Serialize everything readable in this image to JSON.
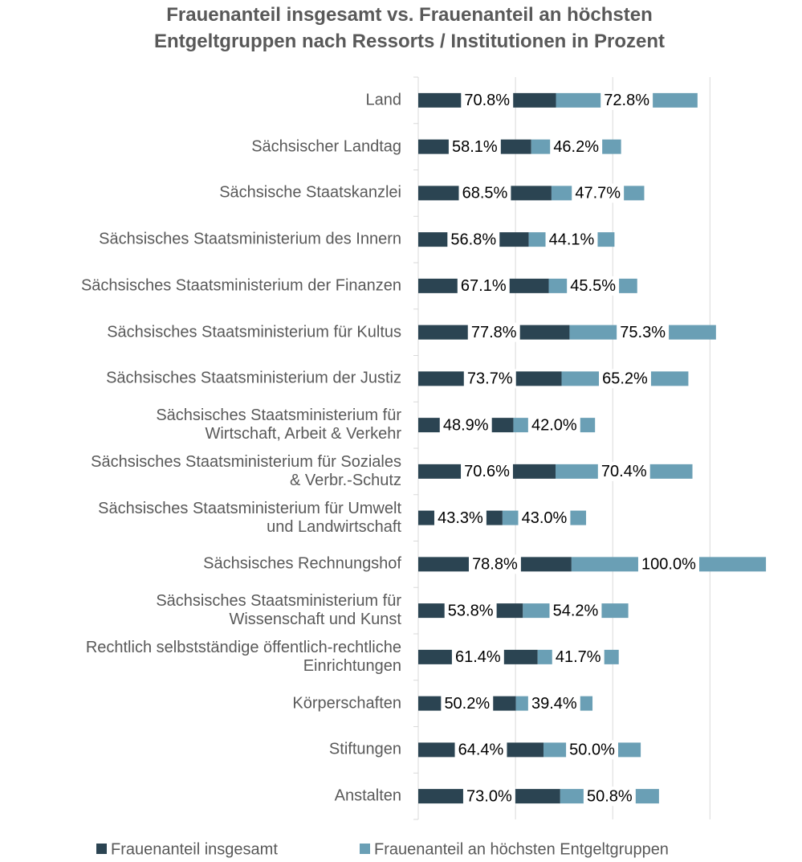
{
  "chart_data": {
    "type": "bar",
    "orientation": "horizontal",
    "stacked": true,
    "title": "Frauenanteil insgesamt vs. Frauenanteil an höchsten\nEntgeltgruppen nach Ressorts / Institutionen in Prozent",
    "categories": [
      "Land",
      "Sächsischer Landtag",
      "Sächsische Staatskanzlei",
      "Sächsisches Staatsministerium des Innern",
      "Sächsisches Staatsministerium der Finanzen",
      "Sächsisches Staatsministerium für Kultus",
      "Sächsisches Staatsministerium der Justiz",
      "Sächsisches Staatsministerium für\nWirtschaft, Arbeit & Verkehr",
      "Sächsisches Staatsministerium für Soziales\n& Verbr.-Schutz",
      "Sächsisches Staatsministerium für Umwelt\nund Landwirtschaft",
      "Sächsisches Rechnungshof",
      "Sächsisches Staatsministerium für\nWissenschaft und Kunst",
      "Rechtlich selbstständige öffentlich-rechtliche\nEinrichtungen",
      "Körperschaften",
      "Stiftungen",
      "Anstalten"
    ],
    "series": [
      {
        "name": "Frauenanteil insgesamt",
        "color": "#2b4452",
        "values": [
          70.8,
          58.1,
          68.5,
          56.8,
          67.1,
          77.8,
          73.7,
          48.9,
          70.6,
          43.3,
          78.8,
          53.8,
          61.4,
          50.2,
          64.4,
          73.0
        ],
        "value_labels": [
          "70.8%",
          "58.1%",
          "68.5%",
          "56.8%",
          "67.1%",
          "77.8%",
          "73.7%",
          "48.9%",
          "70.6%",
          "43.3%",
          "78.8%",
          "53.8%",
          "61.4%",
          "50.2%",
          "64.4%",
          "73.0%"
        ]
      },
      {
        "name": "Frauenanteil an höchsten Entgeltgruppen",
        "color": "#6a9fb5",
        "values": [
          72.8,
          46.2,
          47.7,
          44.1,
          45.5,
          75.3,
          65.2,
          42.0,
          70.4,
          43.0,
          100.0,
          54.2,
          41.7,
          39.4,
          50.0,
          50.8
        ],
        "value_labels": [
          "72.8%",
          "46.2%",
          "47.7%",
          "44.1%",
          "45.5%",
          "75.3%",
          "65.2%",
          "42.0%",
          "70.4%",
          "43.0%",
          "100.0%",
          "54.2%",
          "41.7%",
          "39.4%",
          "50.0%",
          "50.8%"
        ]
      }
    ],
    "xlim": [
      0,
      180
    ],
    "xticks": [
      0,
      50,
      100,
      150
    ],
    "grid": true,
    "legend": "bottom"
  }
}
